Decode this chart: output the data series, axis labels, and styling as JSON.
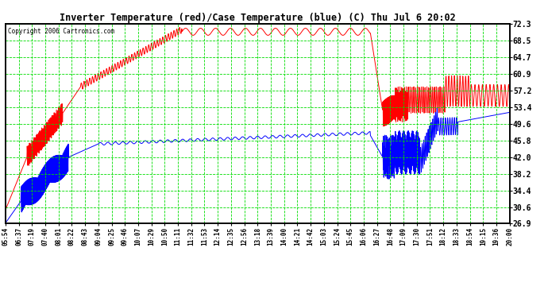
{
  "title": "Inverter Temperature (red)/Case Temperature (blue) (C) Thu Jul 6 20:02",
  "copyright": "Copyright 2006 Cartronics.com",
  "yticks": [
    26.9,
    30.6,
    34.4,
    38.2,
    42.0,
    45.8,
    49.6,
    53.4,
    57.2,
    60.9,
    64.7,
    68.5,
    72.3
  ],
  "ylim": [
    26.9,
    72.3
  ],
  "bg_color": "#ffffff",
  "grid_color": "#00dd00",
  "red_color": "#ff0000",
  "blue_color": "#0000ff",
  "title_color": "#000000",
  "copyright_color": "#000000",
  "xtick_labels": [
    "05:54",
    "06:37",
    "07:19",
    "07:40",
    "08:01",
    "08:22",
    "08:43",
    "09:04",
    "09:25",
    "09:46",
    "10:07",
    "10:29",
    "10:50",
    "11:11",
    "11:32",
    "11:53",
    "12:14",
    "12:35",
    "12:56",
    "13:18",
    "13:39",
    "14:00",
    "14:21",
    "14:42",
    "15:03",
    "15:24",
    "15:45",
    "16:06",
    "16:27",
    "16:48",
    "17:09",
    "17:30",
    "17:51",
    "18:12",
    "18:33",
    "18:54",
    "19:15",
    "19:36",
    "20:00"
  ]
}
